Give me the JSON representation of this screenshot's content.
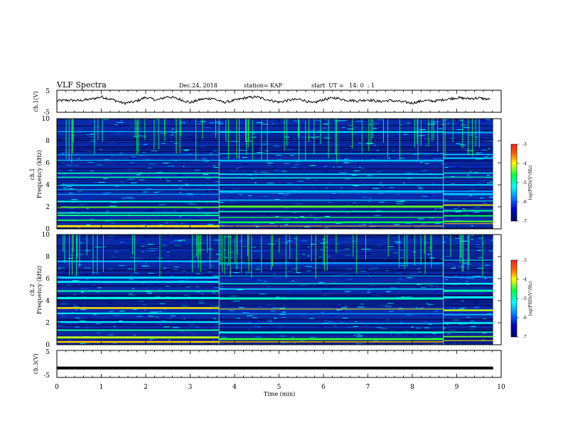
{
  "header": {
    "title": "VLF Spectra",
    "date": "Dec.24, 2018",
    "station": "station= KAP",
    "start": "start  UT =   14: 0  : 1"
  },
  "chart_data": [
    {
      "type": "line",
      "panel": "ch1-waveform",
      "ylabel": "ch.1(V)",
      "ylim": [
        -5,
        5
      ],
      "yticks": [
        "5",
        "-5"
      ],
      "x": [
        0,
        0.25,
        0.5,
        0.75,
        1.0,
        1.25,
        1.5,
        1.75,
        2.0,
        2.25,
        2.5,
        2.75,
        3.0,
        3.25,
        3.5,
        3.75,
        4.0,
        4.25,
        4.5,
        4.75,
        5.0,
        5.25,
        5.5,
        5.75,
        6.0,
        6.25,
        6.5,
        6.75,
        7.0,
        7.25,
        7.5,
        7.75,
        8.0,
        8.25,
        8.5,
        8.75,
        9.0,
        9.25,
        9.5,
        9.75
      ],
      "y": [
        0.2,
        0.5,
        0.3,
        0.9,
        2.0,
        0.8,
        -0.9,
        -0.2,
        1.8,
        0.5,
        2.2,
        1.0,
        -0.6,
        0.9,
        1.4,
        -0.5,
        0.4,
        1.6,
        2.0,
        0.7,
        -0.4,
        0.6,
        0.9,
        -0.9,
        0.8,
        1.6,
        0.6,
        0.2,
        0.7,
        -0.1,
        0.4,
        -0.2,
        -0.8,
        0.3,
        0.1,
        0.9,
        1.6,
        1.2,
        1.5,
        0.8
      ]
    },
    {
      "type": "heatmap",
      "panel": "ch1-spectrogram",
      "ylabel": "ch.1\nFrequency (kHz)",
      "ylim": [
        0,
        10
      ],
      "yticks": [
        "0",
        "2",
        "4",
        "6",
        "8",
        "10"
      ],
      "xlim": [
        0,
        10
      ],
      "color_range": [
        -7,
        -3
      ],
      "colorbar_label": "log(PSD)(V²/Hz)",
      "colorbar_ticks": [
        "-3",
        "-4",
        "-5",
        "-6",
        "-7"
      ],
      "segment_breaks_min": [
        3.65,
        8.7
      ],
      "bands_khz": [
        {
          "f": 0.4,
          "level": -3.9
        },
        {
          "f": 0.8,
          "level": -4.6
        },
        {
          "f": 1.2,
          "level": -4.7
        },
        {
          "f": 1.6,
          "level": -5.0
        },
        {
          "f": 2.1,
          "level": -4.2
        },
        {
          "f": 2.6,
          "level": -5.3
        },
        {
          "f": 3.2,
          "level": -5.6
        },
        {
          "f": 3.6,
          "level": -5.5
        },
        {
          "f": 4.1,
          "level": -5.4
        },
        {
          "f": 4.7,
          "level": -5.1
        },
        {
          "f": 5.1,
          "level": -5.0
        },
        {
          "f": 6.4,
          "level": -5.5
        },
        {
          "f": 6.8,
          "level": -5.4
        },
        {
          "f": 8.9,
          "level": -5.6
        }
      ]
    },
    {
      "type": "heatmap",
      "panel": "ch2-spectrogram",
      "ylabel": "ch.2\nFrequency (kHz)",
      "ylim": [
        0,
        10
      ],
      "yticks": [
        "0",
        "2",
        "4",
        "6",
        "8",
        "10"
      ],
      "xlim": [
        0,
        10
      ],
      "color_range": [
        -7,
        -3
      ],
      "colorbar_label": "log(PSD)(V²/Hz)",
      "colorbar_ticks": [
        "-3",
        "-4",
        "-5",
        "-6",
        "-7"
      ],
      "segment_breaks_min": [
        3.65,
        8.7
      ],
      "bands_khz": [
        {
          "f": 0.3,
          "level": -3.8
        },
        {
          "f": 0.7,
          "level": -4.3
        },
        {
          "f": 1.3,
          "level": -5.1
        },
        {
          "f": 2.0,
          "level": -5.3
        },
        {
          "f": 2.8,
          "level": -5.5
        },
        {
          "f": 3.3,
          "level": -4.1
        },
        {
          "f": 4.4,
          "level": -5.2
        },
        {
          "f": 5.0,
          "level": -5.0
        },
        {
          "f": 5.7,
          "level": -5.2
        },
        {
          "f": 6.3,
          "level": -5.4
        },
        {
          "f": 7.6,
          "level": -5.5
        }
      ]
    },
    {
      "type": "line",
      "panel": "ch3-waveform",
      "ylabel": "ch.3(V)",
      "ylim": [
        -5,
        5
      ],
      "yticks": [
        "5",
        "-5"
      ],
      "x": [
        0,
        9.82
      ],
      "y": [
        -1.5,
        -1.5
      ]
    }
  ],
  "x_axis": {
    "label": "Time (min)",
    "ticks": [
      "0",
      "1",
      "2",
      "3",
      "4",
      "5",
      "6",
      "7",
      "8",
      "9",
      "10"
    ],
    "data_extent": [
      0,
      9.82
    ]
  },
  "colors": {
    "waveform": "#000000",
    "background": "#0a1f9a"
  }
}
